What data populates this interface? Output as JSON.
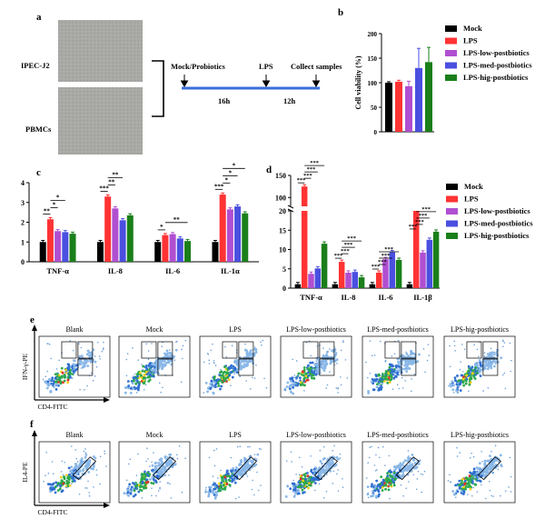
{
  "panel_letters": [
    "a",
    "b",
    "c",
    "d",
    "e",
    "f"
  ],
  "colors": {
    "Mock": "#000000",
    "LPS": "#ff3333",
    "LPS-low-postbiotics": "#b04fd1",
    "LPS-med-postbiotics": "#4a4fe0",
    "LPS-hig-postbiotics": "#1a7f1a"
  },
  "legend": [
    "Mock",
    "LPS",
    "LPS-low-postbiotics",
    "LPS-med-postbiotics",
    "LPS-hig-postbiotics"
  ],
  "panel_a": {
    "cells": [
      "IPEC-J2",
      "PBMCs"
    ],
    "timeline": {
      "labels": [
        "Mock/Probiotics",
        "LPS",
        "Collect samples"
      ],
      "durations": [
        "16h",
        "12h"
      ]
    }
  },
  "chart_data": [
    {
      "panel": "b",
      "type": "bar",
      "ylabel": "Cell viability (%)",
      "ylim": [
        0,
        200
      ],
      "yticks": [
        0,
        50,
        100,
        150,
        200
      ],
      "series": [
        {
          "name": "Mock",
          "values": [
            100
          ],
          "err": [
            2
          ]
        },
        {
          "name": "LPS",
          "values": [
            102
          ],
          "err": [
            3
          ]
        },
        {
          "name": "LPS-low-postbiotics",
          "values": [
            93
          ],
          "err": [
            10
          ]
        },
        {
          "name": "LPS-med-postbiotics",
          "values": [
            130
          ],
          "err": [
            40
          ]
        },
        {
          "name": "LPS-hig-postbiotics",
          "values": [
            142
          ],
          "err": [
            30
          ]
        }
      ]
    },
    {
      "panel": "c",
      "type": "bar",
      "categories": [
        "TNF-α",
        "IL-8",
        "IL-6",
        "IL-1α"
      ],
      "ylim": [
        0,
        4
      ],
      "yticks": [
        0,
        1,
        2,
        3,
        4
      ],
      "series": [
        {
          "name": "Mock",
          "values": [
            1.0,
            1.0,
            1.0,
            1.0
          ]
        },
        {
          "name": "LPS",
          "values": [
            2.15,
            3.3,
            1.35,
            3.4
          ]
        },
        {
          "name": "LPS-low-postbiotics",
          "values": [
            1.55,
            2.7,
            1.4,
            2.65
          ]
        },
        {
          "name": "LPS-med-postbiotics",
          "values": [
            1.5,
            2.1,
            1.18,
            2.8
          ]
        },
        {
          "name": "LPS-hig-postbiotics",
          "values": [
            1.42,
            2.35,
            1.05,
            2.45
          ]
        }
      ],
      "annotations": [
        "**",
        "*",
        "*",
        "***",
        "**",
        "**",
        "*",
        "**",
        "***",
        "*",
        "*",
        "*"
      ]
    },
    {
      "panel": "d",
      "type": "bar",
      "categories": [
        "TNF-α",
        "IL-8",
        "IL-6",
        "IL-1β"
      ],
      "yticks_lower": [
        0,
        5,
        10,
        15,
        20
      ],
      "yticks_upper": [
        100,
        150
      ],
      "series": [
        {
          "name": "Mock",
          "values": [
            1.0,
            1.0,
            1.0,
            1.0
          ]
        },
        {
          "name": "LPS",
          "values": [
            125,
            6.8,
            4.0,
            20.5
          ]
        },
        {
          "name": "LPS-low-postbiotics",
          "values": [
            3.7,
            4.0,
            7.5,
            9.2
          ]
        },
        {
          "name": "LPS-med-postbiotics",
          "values": [
            5.1,
            4.2,
            9.3,
            12.5
          ]
        },
        {
          "name": "LPS-hig-postbiotics",
          "values": [
            11.5,
            2.8,
            7.3,
            14.6
          ]
        }
      ],
      "annotations": [
        "***"
      ]
    }
  ],
  "flow": {
    "e": {
      "ylabel": "IFN-γ-PE",
      "xlabel": "CD4-FITC",
      "titles": [
        "Blank",
        "Mock",
        "LPS",
        "LPS-low-postbiotics",
        "LPS-med-postbiotics",
        "LPS-hig-postbiotics"
      ]
    },
    "f": {
      "ylabel": "IL4-PE",
      "xlabel": "CD4-FITC",
      "titles": [
        "Blank",
        "Mock",
        "LPS",
        "LPS-low-postbiotics",
        "LPS-med-postbiotics",
        "LPS-hig-postbiotics"
      ]
    }
  }
}
